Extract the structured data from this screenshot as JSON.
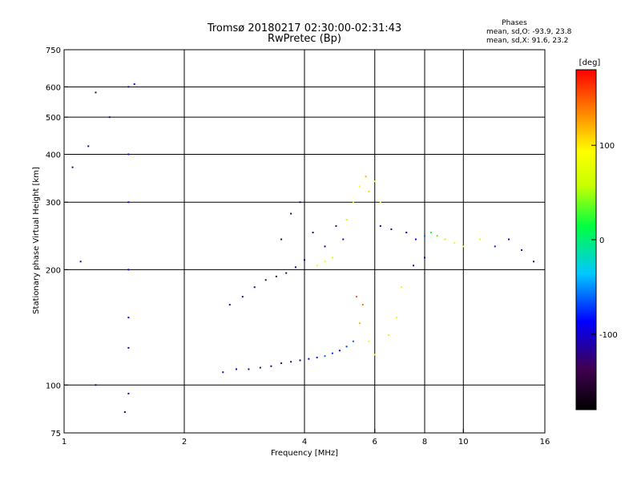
{
  "chart_data": {
    "type": "scatter",
    "title": "Tromsø 20180217 02:30:00-02:31:43",
    "subtitle": "RwPretec (Bp)",
    "phases": {
      "heading": "Phases",
      "line_o": "mean, sd,O: -93.9, 23.8",
      "line_x": "mean, sd,X:  91.6, 23.2"
    },
    "xlabel": "Frequency [MHz]",
    "ylabel": "Stationary phase Virtual Height [km]",
    "xscale": "log",
    "yscale": "log",
    "xlim": [
      1,
      16
    ],
    "ylim": [
      75,
      750
    ],
    "x_ticks": [
      1,
      2,
      4,
      6,
      8,
      10,
      16
    ],
    "x_tick_labels": [
      "1",
      "2",
      "4",
      "6",
      "8",
      "10",
      "16"
    ],
    "y_ticks": [
      75,
      100,
      200,
      300,
      400,
      500,
      600,
      750
    ],
    "y_tick_labels": [
      "75",
      "100",
      "200",
      "300",
      "400",
      "500",
      "600",
      "750"
    ],
    "x_grid": [
      2,
      4,
      6,
      8,
      10
    ],
    "y_grid": [
      100,
      200,
      300,
      400,
      500,
      600
    ],
    "colorbar": {
      "label": "[deg]",
      "range": [
        -180,
        180
      ],
      "ticks": [
        100,
        0,
        -100
      ],
      "tick_labels": [
        "100",
        "0",
        "-100"
      ]
    },
    "series": [
      {
        "points": [
          [
            2.5,
            108,
            -100
          ],
          [
            2.7,
            110,
            -95
          ],
          [
            2.9,
            110,
            -110
          ],
          [
            3.1,
            111,
            -120
          ],
          [
            3.3,
            112,
            -125
          ],
          [
            3.5,
            114,
            -130
          ],
          [
            3.7,
            115,
            -120
          ],
          [
            3.9,
            116,
            -110
          ],
          [
            4.1,
            117,
            -90
          ],
          [
            4.3,
            118,
            -80
          ],
          [
            4.5,
            119,
            -60
          ],
          [
            4.7,
            121,
            -75
          ],
          [
            4.9,
            123,
            -85
          ],
          [
            5.1,
            126,
            -70
          ],
          [
            5.3,
            130,
            -60
          ],
          [
            2.6,
            162,
            -120
          ],
          [
            2.8,
            170,
            -125
          ],
          [
            3.0,
            180,
            -130
          ],
          [
            3.2,
            188,
            -140
          ],
          [
            3.4,
            192,
            -135
          ],
          [
            3.6,
            196,
            -120
          ],
          [
            3.8,
            203,
            -115
          ],
          [
            4.0,
            212,
            -118
          ],
          [
            3.5,
            240,
            -140
          ],
          [
            3.7,
            280,
            -135
          ],
          [
            3.9,
            300,
            -125
          ],
          [
            4.2,
            250,
            -110
          ],
          [
            4.5,
            230,
            -100
          ],
          [
            4.8,
            260,
            -120
          ],
          [
            5.0,
            240,
            -105
          ],
          [
            4.3,
            205,
            80
          ],
          [
            4.5,
            210,
            75
          ],
          [
            4.7,
            215,
            70
          ],
          [
            5.1,
            270,
            60
          ],
          [
            5.3,
            300,
            65
          ],
          [
            5.5,
            330,
            90
          ],
          [
            5.7,
            350,
            120
          ],
          [
            5.8,
            320,
            110
          ],
          [
            6.0,
            340,
            100
          ],
          [
            6.2,
            300,
            85
          ],
          [
            5.4,
            170,
            150
          ],
          [
            5.6,
            162,
            140
          ],
          [
            5.5,
            145,
            120
          ],
          [
            5.8,
            130,
            95
          ],
          [
            6.0,
            120,
            80
          ],
          [
            6.5,
            135,
            70
          ],
          [
            6.8,
            150,
            75
          ],
          [
            7.0,
            180,
            80
          ],
          [
            6.2,
            260,
            -110
          ],
          [
            6.6,
            255,
            -120
          ],
          [
            7.2,
            250,
            -100
          ],
          [
            7.6,
            240,
            -90
          ],
          [
            8.0,
            245,
            -60
          ],
          [
            8.3,
            250,
            20
          ],
          [
            8.6,
            245,
            25
          ],
          [
            9.0,
            240,
            60
          ],
          [
            9.5,
            235,
            80
          ],
          [
            10.0,
            230,
            70
          ],
          [
            11.0,
            240,
            100
          ],
          [
            12.0,
            230,
            -80
          ],
          [
            13.0,
            240,
            -95
          ],
          [
            14.0,
            225,
            -110
          ],
          [
            15.0,
            210,
            -120
          ],
          [
            8.0,
            215,
            -110
          ],
          [
            7.5,
            205,
            -100
          ],
          [
            1.45,
            600,
            -120
          ],
          [
            1.45,
            400,
            -110
          ],
          [
            1.45,
            300,
            -100
          ],
          [
            1.45,
            200,
            -100
          ],
          [
            1.45,
            150,
            -95
          ],
          [
            1.45,
            125,
            -100
          ],
          [
            1.45,
            95,
            -110
          ],
          [
            1.42,
            85,
            -120
          ],
          [
            1.2,
            580,
            -140
          ],
          [
            1.15,
            420,
            -125
          ],
          [
            1.1,
            210,
            -115
          ],
          [
            1.2,
            100,
            -130
          ],
          [
            1.05,
            370,
            -125
          ],
          [
            1.3,
            500,
            -130
          ],
          [
            1.5,
            610,
            -100
          ]
        ]
      }
    ]
  }
}
